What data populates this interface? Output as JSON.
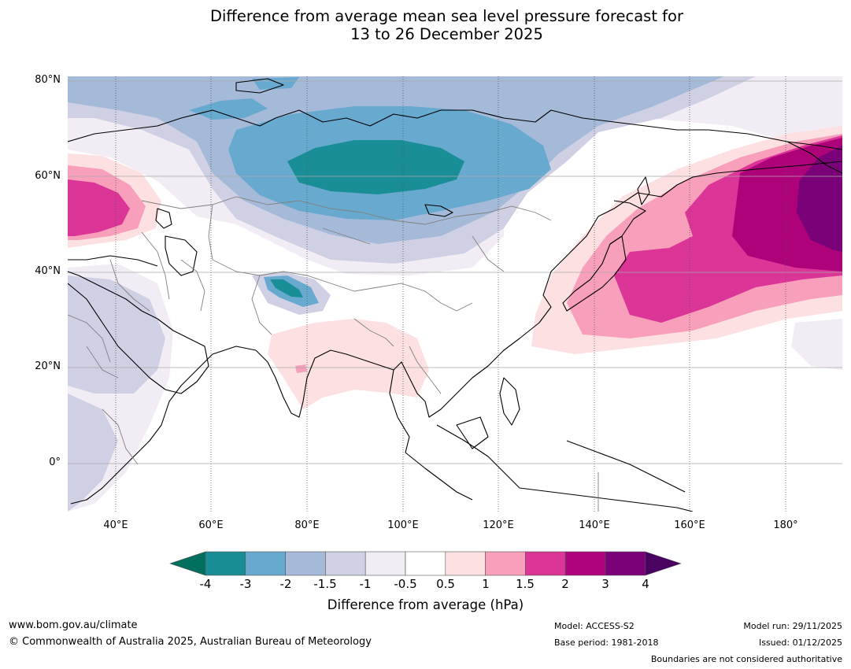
{
  "title": {
    "line1": "Difference from average mean sea level pressure forecast for",
    "line2": "13 to 26 December 2025"
  },
  "map": {
    "lon_range": [
      30,
      192
    ],
    "lat_range": [
      -10,
      81
    ],
    "lat_ticks": [
      {
        "value": 80,
        "label": "80°N"
      },
      {
        "value": 60,
        "label": "60°N"
      },
      {
        "value": 40,
        "label": "40°N"
      },
      {
        "value": 20,
        "label": "20°N"
      },
      {
        "value": 0,
        "label": "0°"
      }
    ],
    "lon_ticks": [
      {
        "value": 40,
        "label": "40°E"
      },
      {
        "value": 60,
        "label": "60°E"
      },
      {
        "value": 80,
        "label": "80°E"
      },
      {
        "value": 100,
        "label": "100°E"
      },
      {
        "value": 120,
        "label": "120°E"
      },
      {
        "value": 140,
        "label": "140°E"
      },
      {
        "value": 160,
        "label": "160°E"
      },
      {
        "value": 180,
        "label": "180°"
      }
    ]
  },
  "colorbar": {
    "label": "Difference from average (hPa)",
    "tick_labels": [
      "-4",
      "-3",
      "-2",
      "-1.5",
      "-1",
      "-0.5",
      "0.5",
      "1",
      "1.5",
      "2",
      "3",
      "4"
    ],
    "colors": [
      "#1a8e96",
      "#68a9d0",
      "#a5bad9",
      "#cfd0e4",
      "#f2edf4",
      "#ffffff",
      "#fde0e1",
      "#f89fbc",
      "#dc3598",
      "#ad0279",
      "#7a0177"
    ],
    "under_color": "#00705e",
    "over_color": "#4a0260"
  },
  "footer": {
    "website": "www.bom.gov.au/climate",
    "copyright": "© Commonwealth of Australia 2025, Australian Bureau of Meteorology",
    "model": "Model: ACCESS-S2",
    "base_period": "Base period: 1981-2018",
    "model_run": "Model run: 29/11/2025",
    "issued": "Issued: 01/12/2025",
    "disclaimer": "Boundaries are not considered authoritative"
  }
}
